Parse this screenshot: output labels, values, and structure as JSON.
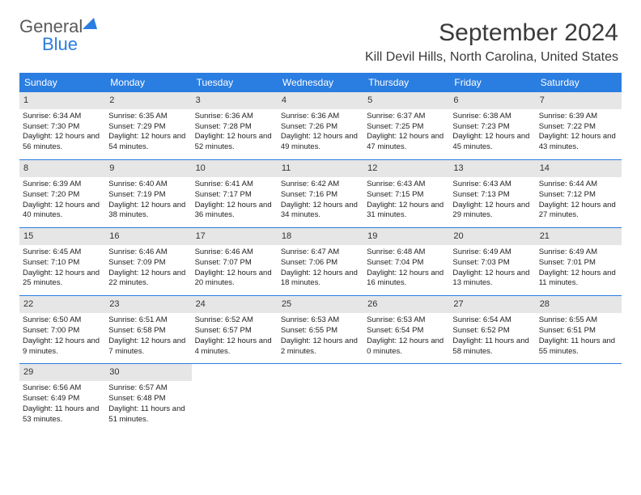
{
  "brand": {
    "part1": "General",
    "part2": "Blue"
  },
  "title": "September 2024",
  "location": "Kill Devil Hills, North Carolina, United States",
  "colors": {
    "accent": "#2a7de1",
    "daybg": "#e6e6e6",
    "text": "#222222"
  },
  "dayHeaders": [
    "Sunday",
    "Monday",
    "Tuesday",
    "Wednesday",
    "Thursday",
    "Friday",
    "Saturday"
  ],
  "weeks": [
    [
      {
        "n": "1",
        "sr": "Sunrise: 6:34 AM",
        "ss": "Sunset: 7:30 PM",
        "dl": "Daylight: 12 hours and 56 minutes."
      },
      {
        "n": "2",
        "sr": "Sunrise: 6:35 AM",
        "ss": "Sunset: 7:29 PM",
        "dl": "Daylight: 12 hours and 54 minutes."
      },
      {
        "n": "3",
        "sr": "Sunrise: 6:36 AM",
        "ss": "Sunset: 7:28 PM",
        "dl": "Daylight: 12 hours and 52 minutes."
      },
      {
        "n": "4",
        "sr": "Sunrise: 6:36 AM",
        "ss": "Sunset: 7:26 PM",
        "dl": "Daylight: 12 hours and 49 minutes."
      },
      {
        "n": "5",
        "sr": "Sunrise: 6:37 AM",
        "ss": "Sunset: 7:25 PM",
        "dl": "Daylight: 12 hours and 47 minutes."
      },
      {
        "n": "6",
        "sr": "Sunrise: 6:38 AM",
        "ss": "Sunset: 7:23 PM",
        "dl": "Daylight: 12 hours and 45 minutes."
      },
      {
        "n": "7",
        "sr": "Sunrise: 6:39 AM",
        "ss": "Sunset: 7:22 PM",
        "dl": "Daylight: 12 hours and 43 minutes."
      }
    ],
    [
      {
        "n": "8",
        "sr": "Sunrise: 6:39 AM",
        "ss": "Sunset: 7:20 PM",
        "dl": "Daylight: 12 hours and 40 minutes."
      },
      {
        "n": "9",
        "sr": "Sunrise: 6:40 AM",
        "ss": "Sunset: 7:19 PM",
        "dl": "Daylight: 12 hours and 38 minutes."
      },
      {
        "n": "10",
        "sr": "Sunrise: 6:41 AM",
        "ss": "Sunset: 7:17 PM",
        "dl": "Daylight: 12 hours and 36 minutes."
      },
      {
        "n": "11",
        "sr": "Sunrise: 6:42 AM",
        "ss": "Sunset: 7:16 PM",
        "dl": "Daylight: 12 hours and 34 minutes."
      },
      {
        "n": "12",
        "sr": "Sunrise: 6:43 AM",
        "ss": "Sunset: 7:15 PM",
        "dl": "Daylight: 12 hours and 31 minutes."
      },
      {
        "n": "13",
        "sr": "Sunrise: 6:43 AM",
        "ss": "Sunset: 7:13 PM",
        "dl": "Daylight: 12 hours and 29 minutes."
      },
      {
        "n": "14",
        "sr": "Sunrise: 6:44 AM",
        "ss": "Sunset: 7:12 PM",
        "dl": "Daylight: 12 hours and 27 minutes."
      }
    ],
    [
      {
        "n": "15",
        "sr": "Sunrise: 6:45 AM",
        "ss": "Sunset: 7:10 PM",
        "dl": "Daylight: 12 hours and 25 minutes."
      },
      {
        "n": "16",
        "sr": "Sunrise: 6:46 AM",
        "ss": "Sunset: 7:09 PM",
        "dl": "Daylight: 12 hours and 22 minutes."
      },
      {
        "n": "17",
        "sr": "Sunrise: 6:46 AM",
        "ss": "Sunset: 7:07 PM",
        "dl": "Daylight: 12 hours and 20 minutes."
      },
      {
        "n": "18",
        "sr": "Sunrise: 6:47 AM",
        "ss": "Sunset: 7:06 PM",
        "dl": "Daylight: 12 hours and 18 minutes."
      },
      {
        "n": "19",
        "sr": "Sunrise: 6:48 AM",
        "ss": "Sunset: 7:04 PM",
        "dl": "Daylight: 12 hours and 16 minutes."
      },
      {
        "n": "20",
        "sr": "Sunrise: 6:49 AM",
        "ss": "Sunset: 7:03 PM",
        "dl": "Daylight: 12 hours and 13 minutes."
      },
      {
        "n": "21",
        "sr": "Sunrise: 6:49 AM",
        "ss": "Sunset: 7:01 PM",
        "dl": "Daylight: 12 hours and 11 minutes."
      }
    ],
    [
      {
        "n": "22",
        "sr": "Sunrise: 6:50 AM",
        "ss": "Sunset: 7:00 PM",
        "dl": "Daylight: 12 hours and 9 minutes."
      },
      {
        "n": "23",
        "sr": "Sunrise: 6:51 AM",
        "ss": "Sunset: 6:58 PM",
        "dl": "Daylight: 12 hours and 7 minutes."
      },
      {
        "n": "24",
        "sr": "Sunrise: 6:52 AM",
        "ss": "Sunset: 6:57 PM",
        "dl": "Daylight: 12 hours and 4 minutes."
      },
      {
        "n": "25",
        "sr": "Sunrise: 6:53 AM",
        "ss": "Sunset: 6:55 PM",
        "dl": "Daylight: 12 hours and 2 minutes."
      },
      {
        "n": "26",
        "sr": "Sunrise: 6:53 AM",
        "ss": "Sunset: 6:54 PM",
        "dl": "Daylight: 12 hours and 0 minutes."
      },
      {
        "n": "27",
        "sr": "Sunrise: 6:54 AM",
        "ss": "Sunset: 6:52 PM",
        "dl": "Daylight: 11 hours and 58 minutes."
      },
      {
        "n": "28",
        "sr": "Sunrise: 6:55 AM",
        "ss": "Sunset: 6:51 PM",
        "dl": "Daylight: 11 hours and 55 minutes."
      }
    ],
    [
      {
        "n": "29",
        "sr": "Sunrise: 6:56 AM",
        "ss": "Sunset: 6:49 PM",
        "dl": "Daylight: 11 hours and 53 minutes."
      },
      {
        "n": "30",
        "sr": "Sunrise: 6:57 AM",
        "ss": "Sunset: 6:48 PM",
        "dl": "Daylight: 11 hours and 51 minutes."
      },
      null,
      null,
      null,
      null,
      null
    ]
  ]
}
